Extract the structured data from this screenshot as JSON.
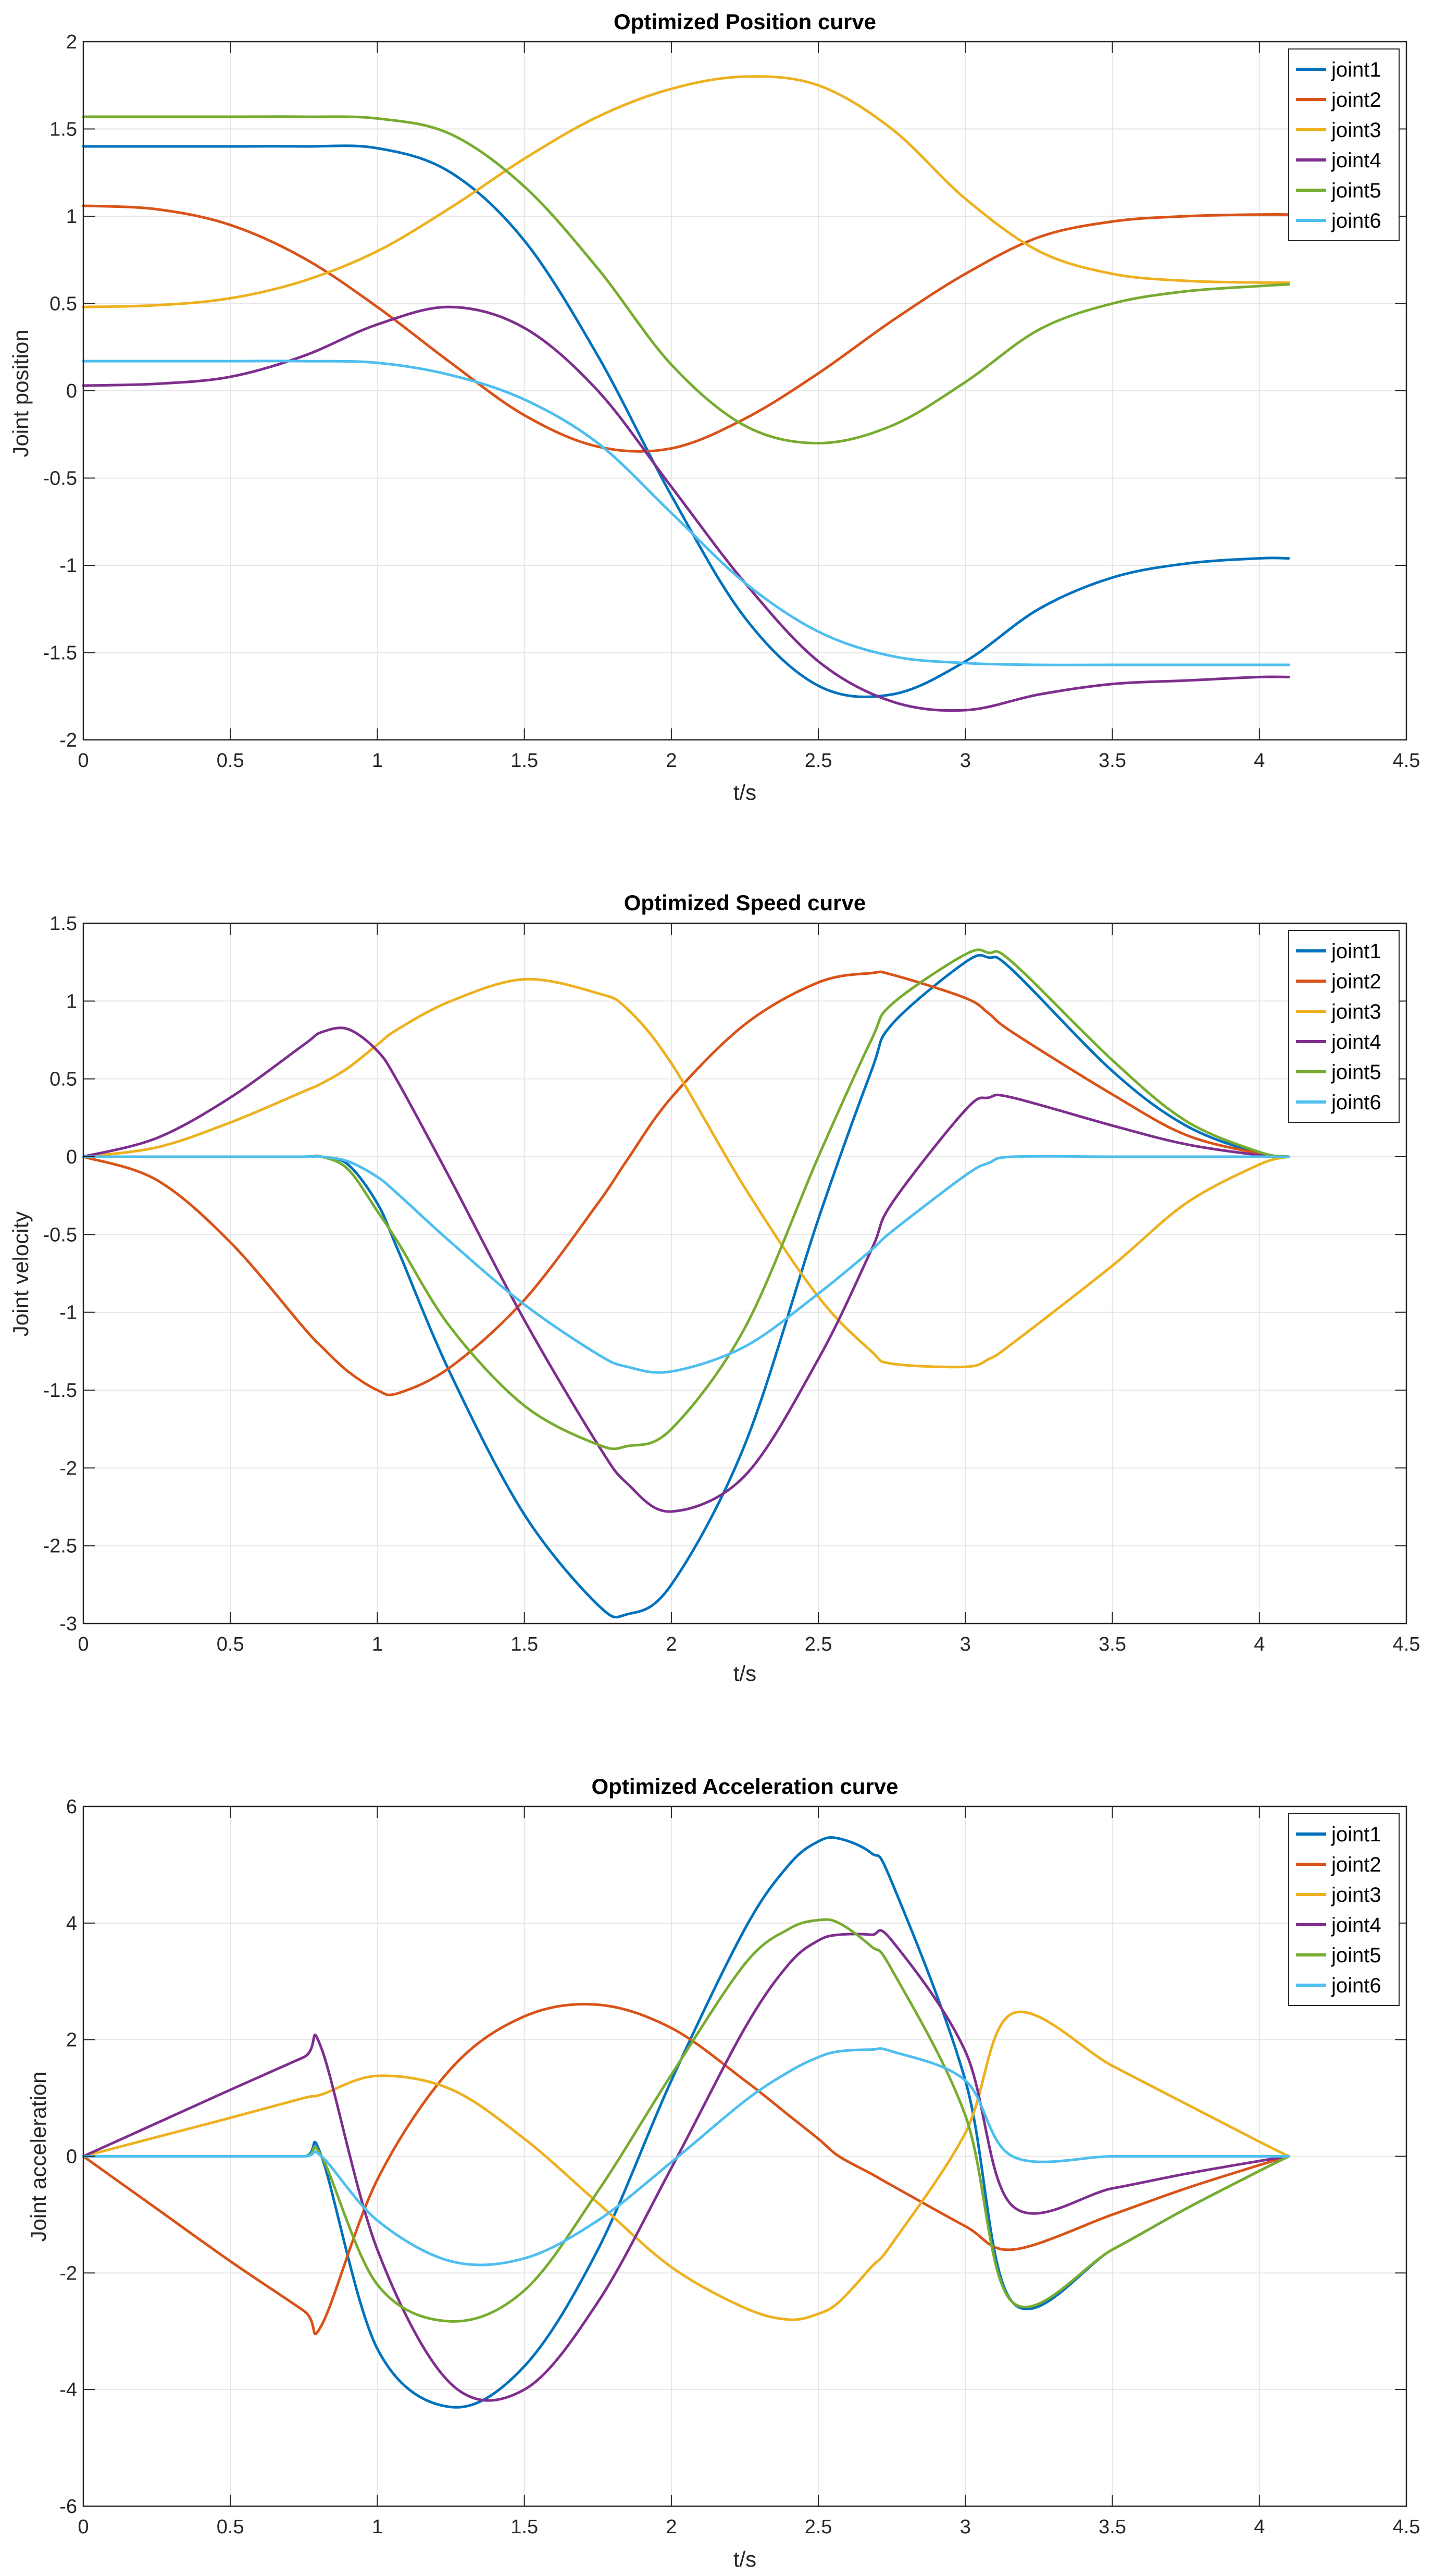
{
  "figure": {
    "series_names": [
      "joint1",
      "joint2",
      "joint3",
      "joint4",
      "joint5",
      "joint6"
    ],
    "series_colors": [
      "#0072BD",
      "#D95319",
      "#EDB120",
      "#7E2F8E",
      "#77AC30",
      "#4DBEEE"
    ]
  },
  "chart_data": [
    {
      "type": "line",
      "title": "Optimized Position curve",
      "xlabel": "t/s",
      "ylabel": "Joint position",
      "xlim": [
        0,
        4.5
      ],
      "ylim": [
        -2,
        2
      ],
      "xticks": [
        0,
        0.5,
        1,
        1.5,
        2,
        2.5,
        3,
        3.5,
        4,
        4.5
      ],
      "yticks": [
        -2,
        -1.5,
        -1,
        -0.5,
        0,
        0.5,
        1,
        1.5,
        2
      ],
      "grid": true,
      "legend_location": "top-right",
      "x": [
        0,
        0.25,
        0.5,
        0.75,
        1,
        1.25,
        1.5,
        1.75,
        2,
        2.25,
        2.5,
        2.75,
        3,
        3.25,
        3.5,
        3.75,
        4,
        4.1
      ],
      "series": [
        {
          "name": "joint1",
          "values": [
            1.4,
            1.4,
            1.4,
            1.4,
            1.39,
            1.25,
            0.86,
            0.2,
            -0.6,
            -1.3,
            -1.69,
            -1.74,
            -1.55,
            -1.25,
            -1.07,
            -0.99,
            -0.96,
            -0.96
          ]
        },
        {
          "name": "joint2",
          "values": [
            1.06,
            1.04,
            0.95,
            0.76,
            0.48,
            0.16,
            -0.14,
            -0.32,
            -0.33,
            -0.16,
            0.1,
            0.4,
            0.67,
            0.88,
            0.97,
            1.0,
            1.01,
            1.01
          ]
        },
        {
          "name": "joint3",
          "values": [
            0.48,
            0.49,
            0.53,
            0.63,
            0.8,
            1.05,
            1.33,
            1.57,
            1.73,
            1.8,
            1.75,
            1.5,
            1.1,
            0.8,
            0.67,
            0.63,
            0.62,
            0.62
          ]
        },
        {
          "name": "joint4",
          "values": [
            0.03,
            0.04,
            0.08,
            0.2,
            0.38,
            0.48,
            0.36,
            0.0,
            -0.55,
            -1.1,
            -1.55,
            -1.78,
            -1.83,
            -1.74,
            -1.68,
            -1.66,
            -1.64,
            -1.64
          ]
        },
        {
          "name": "joint5",
          "values": [
            1.57,
            1.57,
            1.57,
            1.57,
            1.56,
            1.47,
            1.17,
            0.7,
            0.15,
            -0.2,
            -0.3,
            -0.2,
            0.05,
            0.35,
            0.5,
            0.57,
            0.6,
            0.61
          ]
        },
        {
          "name": "joint6",
          "values": [
            0.17,
            0.17,
            0.17,
            0.17,
            0.16,
            0.09,
            -0.05,
            -0.3,
            -0.7,
            -1.1,
            -1.38,
            -1.52,
            -1.56,
            -1.57,
            -1.57,
            -1.57,
            -1.57,
            -1.57
          ]
        }
      ]
    },
    {
      "type": "line",
      "title": "Optimized Speed curve",
      "xlabel": "t/s",
      "ylabel": "Joint velocity",
      "xlim": [
        0,
        4.5
      ],
      "ylim": [
        -3,
        1.5
      ],
      "xticks": [
        0,
        0.5,
        1,
        1.5,
        2,
        2.5,
        3,
        3.5,
        4,
        4.5
      ],
      "yticks": [
        -3,
        -2.5,
        -2,
        -1.5,
        -1,
        -0.5,
        0,
        0.5,
        1,
        1.5
      ],
      "grid": true,
      "legend_location": "top-right",
      "x": [
        0,
        0.25,
        0.5,
        0.75,
        0.81,
        0.9,
        1,
        1.07,
        1.25,
        1.5,
        1.75,
        1.85,
        2,
        2.25,
        2.5,
        2.68,
        2.75,
        3,
        3.08,
        3.16,
        3.5,
        3.75,
        4,
        4.1
      ],
      "series": [
        {
          "name": "joint1",
          "values": [
            0,
            0,
            0,
            0,
            0,
            -0.05,
            -0.3,
            -0.6,
            -1.4,
            -2.3,
            -2.88,
            -2.94,
            -2.75,
            -1.85,
            -0.4,
            0.55,
            0.85,
            1.25,
            1.28,
            1.2,
            0.55,
            0.2,
            0.02,
            0
          ]
        },
        {
          "name": "joint2",
          "values": [
            0,
            -0.15,
            -0.55,
            -1.1,
            -1.22,
            -1.38,
            -1.5,
            -1.52,
            -1.35,
            -0.92,
            -0.3,
            -0.02,
            0.38,
            0.85,
            1.12,
            1.18,
            1.17,
            1.02,
            0.92,
            0.8,
            0.4,
            0.14,
            0.02,
            0
          ]
        },
        {
          "name": "joint3",
          "values": [
            0,
            0.06,
            0.22,
            0.42,
            0.47,
            0.57,
            0.72,
            0.82,
            1.0,
            1.14,
            1.05,
            0.95,
            0.6,
            -0.2,
            -0.9,
            -1.25,
            -1.33,
            -1.35,
            -1.3,
            -1.2,
            -0.7,
            -0.3,
            -0.05,
            0
          ]
        },
        {
          "name": "joint4",
          "values": [
            0,
            0.12,
            0.38,
            0.72,
            0.8,
            0.82,
            0.68,
            0.48,
            -0.15,
            -1.05,
            -1.85,
            -2.1,
            -2.28,
            -2.05,
            -1.3,
            -0.6,
            -0.3,
            0.3,
            0.38,
            0.38,
            0.2,
            0.08,
            0.01,
            0
          ]
        },
        {
          "name": "joint5",
          "values": [
            0,
            0,
            0,
            0,
            0,
            -0.08,
            -0.35,
            -0.55,
            -1.1,
            -1.6,
            -1.85,
            -1.86,
            -1.75,
            -1.1,
            0.0,
            0.75,
            0.98,
            1.3,
            1.31,
            1.25,
            0.62,
            0.23,
            0.03,
            0
          ]
        },
        {
          "name": "joint6",
          "values": [
            0,
            0,
            0,
            0,
            0,
            -0.03,
            -0.13,
            -0.24,
            -0.55,
            -0.95,
            -1.27,
            -1.35,
            -1.38,
            -1.22,
            -0.88,
            -0.6,
            -0.48,
            -0.12,
            -0.04,
            0,
            0,
            0,
            0,
            0
          ]
        }
      ]
    },
    {
      "type": "line",
      "title": "Optimized Acceleration curve",
      "xlabel": "t/s",
      "ylabel": "Joint acceleration",
      "xlim": [
        0,
        4.5
      ],
      "ylim": [
        -6,
        6
      ],
      "xticks": [
        0,
        0.5,
        1,
        1.5,
        2,
        2.5,
        3,
        3.5,
        4,
        4.5
      ],
      "yticks": [
        -6,
        -4,
        -2,
        0,
        2,
        4,
        6
      ],
      "grid": true,
      "legend_location": "top-right",
      "x": [
        0,
        0.25,
        0.5,
        0.75,
        0.81,
        1,
        1.25,
        1.5,
        1.75,
        2,
        2.25,
        2.4,
        2.5,
        2.57,
        2.68,
        2.75,
        3,
        3.16,
        3.5,
        3.75,
        4,
        4.1
      ],
      "series": [
        {
          "name": "joint1",
          "values": [
            0,
            0,
            0,
            0,
            0,
            -3.3,
            -4.3,
            -3.6,
            -1.6,
            1.3,
            3.9,
            5.0,
            5.4,
            5.45,
            5.2,
            4.7,
            1.3,
            -2.5,
            -1.6,
            -0.9,
            -0.25,
            0
          ]
        },
        {
          "name": "joint2",
          "values": [
            0,
            -0.9,
            -1.8,
            -2.65,
            -2.9,
            -0.4,
            1.5,
            2.4,
            2.6,
            2.2,
            1.3,
            0.7,
            0.3,
            0.0,
            -0.3,
            -0.5,
            -1.2,
            -1.6,
            -1.0,
            -0.55,
            -0.15,
            0
          ]
        },
        {
          "name": "joint3",
          "values": [
            0,
            0.33,
            0.66,
            1.0,
            1.06,
            1.38,
            1.15,
            0.3,
            -0.8,
            -1.9,
            -2.6,
            -2.8,
            -2.7,
            -2.5,
            -1.9,
            -1.5,
            0.4,
            2.45,
            1.55,
            0.9,
            0.25,
            0
          ]
        },
        {
          "name": "joint4",
          "values": [
            0,
            0.57,
            1.14,
            1.7,
            1.85,
            -1.6,
            -3.9,
            -4.0,
            -2.5,
            -0.2,
            2.2,
            3.3,
            3.7,
            3.8,
            3.8,
            3.7,
            1.8,
            -0.85,
            -0.55,
            -0.3,
            -0.08,
            0
          ]
        },
        {
          "name": "joint5",
          "values": [
            0,
            0,
            0,
            0,
            0,
            -2.2,
            -2.83,
            -2.3,
            -0.6,
            1.4,
            3.3,
            3.9,
            4.05,
            4.0,
            3.6,
            3.2,
            0.7,
            -2.5,
            -1.6,
            -0.9,
            -0.25,
            0
          ]
        },
        {
          "name": "joint6",
          "values": [
            0,
            0,
            0,
            0,
            0,
            -1.1,
            -1.8,
            -1.75,
            -1.1,
            -0.1,
            0.95,
            1.45,
            1.7,
            1.8,
            1.83,
            1.8,
            1.3,
            0,
            0,
            0,
            0,
            0
          ]
        }
      ]
    }
  ]
}
